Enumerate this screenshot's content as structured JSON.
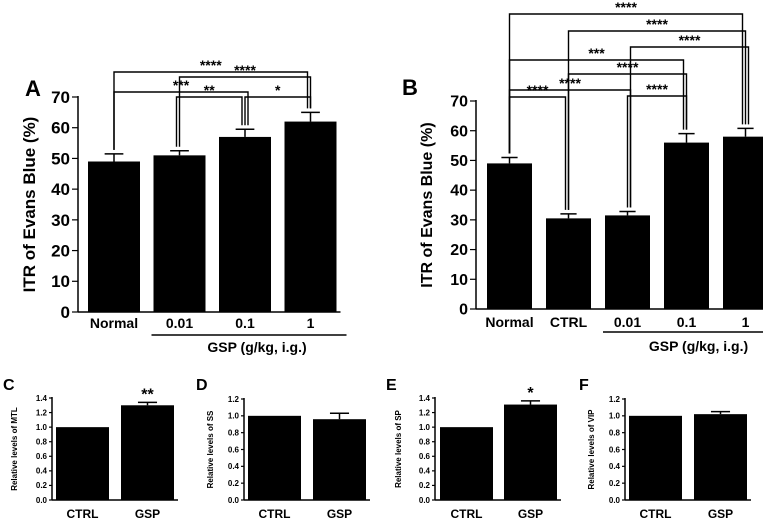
{
  "chart_data": [
    {
      "id": "A",
      "panel_label": "A",
      "type": "bar",
      "ylabel": "ITR of Evans Blue (%)",
      "ylim": [
        0,
        70
      ],
      "yticks": [
        0,
        10,
        20,
        30,
        40,
        50,
        60,
        70
      ],
      "categories": [
        "Normal",
        "0.01",
        "0.1",
        "1"
      ],
      "values": [
        49,
        51,
        57,
        62
      ],
      "errors": [
        2.5,
        1.5,
        2.5,
        3.0
      ],
      "group_label": "GSP (g/kg, i.g.)",
      "group_start": 1,
      "group_end": 3,
      "comparisons": [
        {
          "from": 0,
          "to": 3,
          "label": "****"
        },
        {
          "from": 1,
          "to": 3,
          "label": "****"
        },
        {
          "from": 0,
          "to": 2,
          "label": "***"
        },
        {
          "from": 1,
          "to": 2,
          "label": "**"
        },
        {
          "from": 2,
          "to": 3,
          "label": "*"
        }
      ]
    },
    {
      "id": "B",
      "panel_label": "B",
      "type": "bar",
      "ylabel": "ITR of Evans Blue (%)",
      "ylim": [
        0,
        70
      ],
      "yticks": [
        0,
        10,
        20,
        30,
        40,
        50,
        60,
        70
      ],
      "categories": [
        "Normal",
        "CTRL",
        "0.01",
        "0.1",
        "1"
      ],
      "values": [
        49,
        30.5,
        31.5,
        56,
        58
      ],
      "errors": [
        2.0,
        1.5,
        1.3,
        3.0,
        2.8
      ],
      "group_label": "GSP (g/kg, i.g.)",
      "group_start": 2,
      "group_end": 4,
      "comparisons": [
        {
          "from": 0,
          "to": 4,
          "label": "****"
        },
        {
          "from": 1,
          "to": 4,
          "label": "****"
        },
        {
          "from": 2,
          "to": 4,
          "label": "****"
        },
        {
          "from": 0,
          "to": 3,
          "label": "***"
        },
        {
          "from": 1,
          "to": 3,
          "label": "****"
        },
        {
          "from": 0,
          "to": 2,
          "label": "****"
        },
        {
          "from": 0,
          "to": 1,
          "label": "****"
        },
        {
          "from": 2,
          "to": 3,
          "label": "****"
        }
      ]
    },
    {
      "id": "C",
      "panel_label": "C",
      "type": "bar",
      "ylabel": "Relative levels of MTL",
      "ylim": [
        0,
        1.4
      ],
      "yticks": [
        "0.0",
        "0.2",
        "0.4",
        "0.6",
        "0.8",
        "1.0",
        "1.2",
        "1.4"
      ],
      "categories": [
        "CTRL",
        "GSP"
      ],
      "values": [
        1.0,
        1.3
      ],
      "errors": [
        0,
        0.04
      ],
      "significance": [
        "",
        "**"
      ]
    },
    {
      "id": "D",
      "panel_label": "D",
      "type": "bar",
      "ylabel": "Relative levels of SS",
      "ylim": [
        0,
        1.2
      ],
      "yticks": [
        "0.0",
        "0.2",
        "0.4",
        "0.6",
        "0.8",
        "1.0",
        "1.2"
      ],
      "categories": [
        "CTRL",
        "GSP"
      ],
      "values": [
        1.0,
        0.96
      ],
      "errors": [
        0,
        0.07
      ],
      "significance": [
        "",
        ""
      ]
    },
    {
      "id": "E",
      "panel_label": "E",
      "type": "bar",
      "ylabel": "Relative levels of SP",
      "ylim": [
        0,
        1.4
      ],
      "yticks": [
        "0.0",
        "0.2",
        "0.4",
        "0.6",
        "0.8",
        "1.0",
        "1.2",
        "1.4"
      ],
      "categories": [
        "CTRL",
        "GSP"
      ],
      "values": [
        1.0,
        1.31
      ],
      "errors": [
        0,
        0.05
      ],
      "significance": [
        "",
        "*"
      ]
    },
    {
      "id": "F",
      "panel_label": "F",
      "type": "bar",
      "ylabel": "Relative levels of VIP",
      "ylim": [
        0,
        1.2
      ],
      "yticks": [
        "0.0",
        "0.2",
        "0.4",
        "0.6",
        "0.8",
        "1.0",
        "1.2"
      ],
      "categories": [
        "CTRL",
        "GSP"
      ],
      "values": [
        1.0,
        1.02
      ],
      "errors": [
        0,
        0.03
      ],
      "significance": [
        "",
        ""
      ]
    }
  ]
}
